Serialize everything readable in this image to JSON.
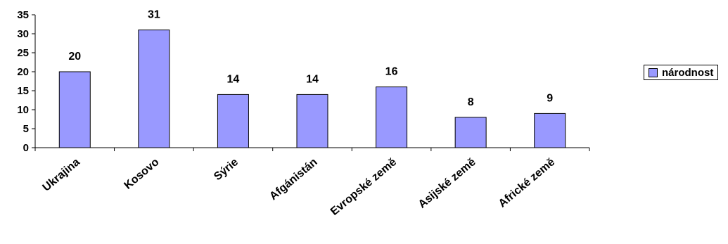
{
  "chart_data": {
    "type": "bar",
    "categories": [
      "Ukrajina",
      "Kosovo",
      "Sýrie",
      "Afgánistán",
      "Evropské země",
      "Asijské země",
      "Africké země"
    ],
    "series": [
      {
        "name": "národnost",
        "values": [
          20,
          31,
          14,
          14,
          16,
          8,
          9
        ]
      }
    ],
    "y_ticks": [
      "0",
      "5",
      "10",
      "15",
      "20",
      "25",
      "30",
      "35"
    ],
    "ylim": [
      0,
      35
    ],
    "title": "",
    "xlabel": "",
    "ylabel": "",
    "grid": false,
    "legend_position": "right",
    "data_labels": [
      "20",
      "31",
      "14",
      "14",
      "16",
      "8",
      "9"
    ],
    "colors": {
      "bar_fill": "#9999ff",
      "bar_stroke": "#000000"
    }
  }
}
